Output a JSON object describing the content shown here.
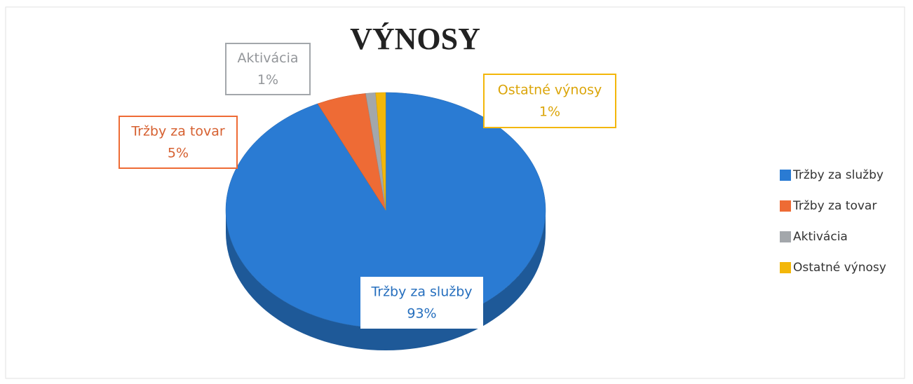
{
  "chart_data": {
    "type": "pie",
    "title": "VÝNOSY",
    "categories": [
      "Tržby za služby",
      "Tržby za tovar",
      "Aktivácia",
      "Ostatné výnosy"
    ],
    "values": [
      93,
      5,
      1,
      1
    ],
    "value_labels": [
      "93%",
      "5%",
      "1%",
      "1%"
    ],
    "colors": [
      "#2a7bd3",
      "#ee6b35",
      "#a3a7ab",
      "#f3b70a"
    ],
    "legend": "right"
  }
}
